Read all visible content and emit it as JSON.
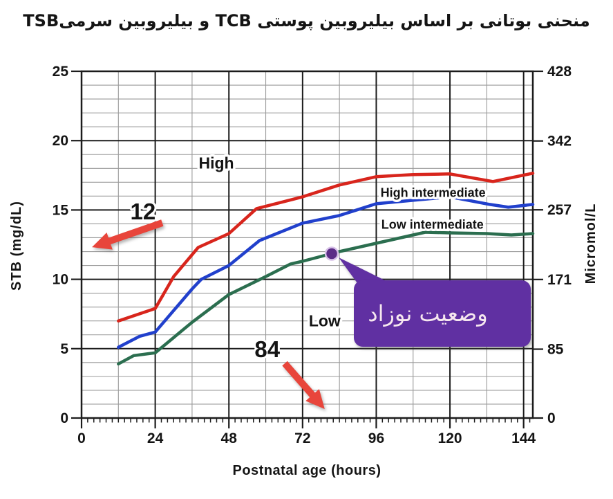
{
  "chart_data": {
    "type": "line",
    "title": "منحنی بوتانی بر اساس بیلیروبین پوستی TCB و بیلیروبین سرمیTSB",
    "xlabel": "Postnatal age (hours)",
    "ylabel_left": "STB (mg/dL)",
    "ylabel_right": "Micromol/L",
    "xlim": [
      0,
      147
    ],
    "ylim_left": [
      0,
      25
    ],
    "ylim_right": [
      0,
      428
    ],
    "x_major_ticks": [
      0,
      24,
      48,
      72,
      96,
      120,
      144
    ],
    "x_minor_tick_step": 2,
    "x_grid_minor_step": 12,
    "y_left_major_ticks": [
      0,
      5,
      10,
      15,
      20,
      25
    ],
    "y_left_minor_step": 1,
    "y_right_major_ticks": [
      0,
      85,
      171,
      257,
      342,
      428
    ],
    "grid": true,
    "legend": "none",
    "series": [
      {
        "id": "red-upper-curve",
        "color": "#d8251c",
        "points": [
          [
            12,
            7.0
          ],
          [
            24,
            7.9
          ],
          [
            30,
            10.2
          ],
          [
            38,
            12.3
          ],
          [
            48,
            13.3
          ],
          [
            57,
            15.1
          ],
          [
            72,
            15.95
          ],
          [
            84,
            16.8
          ],
          [
            96,
            17.4
          ],
          [
            108,
            17.55
          ],
          [
            120,
            17.6
          ],
          [
            134,
            17.05
          ],
          [
            147,
            17.65
          ]
        ]
      },
      {
        "id": "blue-middle-curve",
        "color": "#2140cc",
        "points": [
          [
            12,
            5.1
          ],
          [
            19,
            5.9
          ],
          [
            24,
            6.2
          ],
          [
            36,
            9.3
          ],
          [
            39,
            10.0
          ],
          [
            48,
            11.0
          ],
          [
            58,
            12.8
          ],
          [
            72,
            14.05
          ],
          [
            84,
            14.6
          ],
          [
            96,
            15.45
          ],
          [
            108,
            15.7
          ],
          [
            120,
            15.95
          ],
          [
            133,
            15.4
          ],
          [
            139,
            15.2
          ],
          [
            147,
            15.4
          ]
        ]
      },
      {
        "id": "green-lower-curve",
        "color": "#2b6e4f",
        "points": [
          [
            12,
            3.9
          ],
          [
            17,
            4.5
          ],
          [
            24,
            4.7
          ],
          [
            36,
            6.9
          ],
          [
            48,
            8.9
          ],
          [
            60,
            10.2
          ],
          [
            68,
            11.1
          ],
          [
            72,
            11.3
          ],
          [
            84,
            12.0
          ],
          [
            96,
            12.6
          ],
          [
            112,
            13.4
          ],
          [
            120,
            13.35
          ],
          [
            132,
            13.3
          ],
          [
            140,
            13.2
          ],
          [
            147,
            13.3
          ]
        ]
      }
    ],
    "zone_labels": [
      {
        "text": "High",
        "x_hours": 43.9,
        "y_value": 18.4,
        "font_size": 23
      },
      {
        "text": "High intermediate",
        "x_hours": 114.5,
        "y_value": 16.27,
        "font_size": 18
      },
      {
        "text": "Low intermediate",
        "x_hours": 114.3,
        "y_value": 13.97,
        "font_size": 18
      },
      {
        "text": "Low",
        "x_hours": 79.2,
        "y_value": 7.03,
        "font_size": 23
      }
    ],
    "marker_point": {
      "x_hours": 81.5,
      "y_value": 11.85,
      "color": "#5b2c87"
    },
    "annotations": [
      {
        "text": "12",
        "x_hours": 20.0,
        "y_value": 14.87,
        "arrow": {
          "from_hours": 26.3,
          "from_value": 14.07,
          "to_hours": 3.4,
          "to_value": 12.32
        }
      },
      {
        "text": "84",
        "x_hours": 60.5,
        "y_value": 4.94,
        "arrow": {
          "from_hours": 66.2,
          "from_value": 3.94,
          "to_hours": 79.2,
          "to_value": 0.65
        }
      }
    ],
    "callout": {
      "text": "وضعیت نوزاد",
      "fill": "#6030a2",
      "text_color": "#f6e7ef"
    }
  },
  "colors": {
    "curve_red": "#d8251c",
    "curve_blue": "#2140cc",
    "curve_green": "#2b6e4f",
    "arrow_red": "#e8453b",
    "annotation_purple": "#5b2c87",
    "callout_purple": "#6030a2",
    "grid_minor": "#9a9a9a",
    "grid_major": "#1c1c1c",
    "axis": "#1c1c1c"
  }
}
